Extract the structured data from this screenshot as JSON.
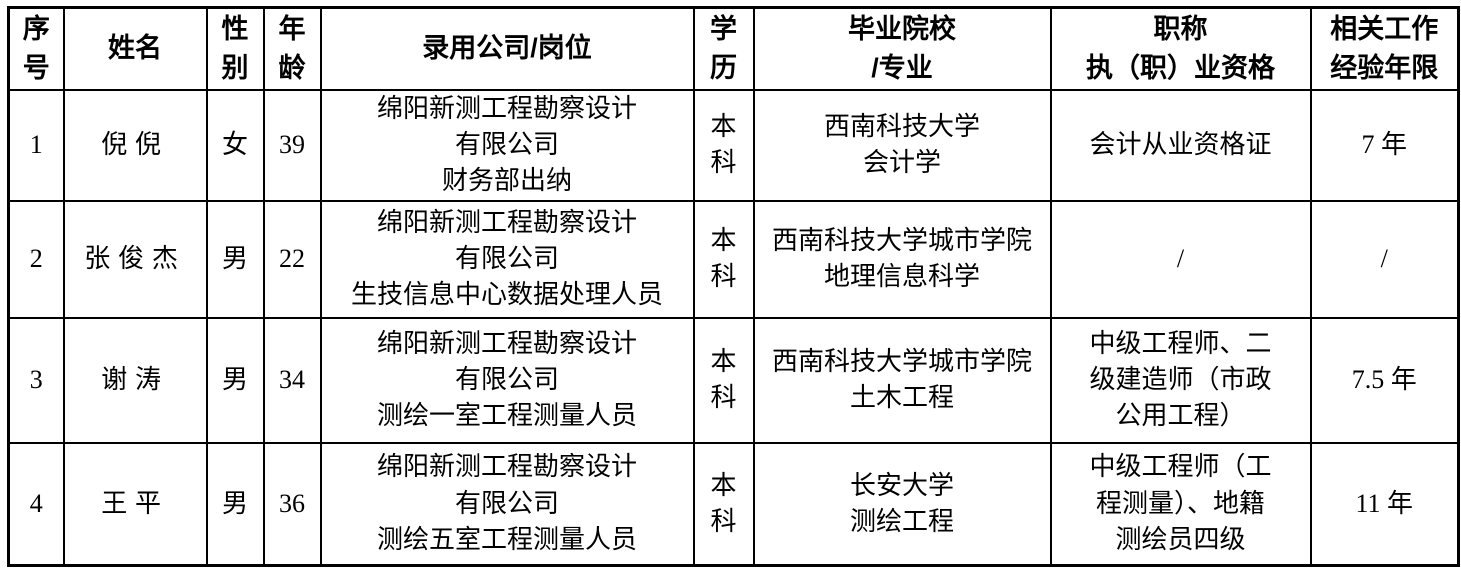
{
  "table": {
    "headers": [
      "序\n号",
      "姓名",
      "性\n别",
      "年\n龄",
      "录用公司/岗位",
      "学\n历",
      "毕业院校\n/专业",
      "职称\n执（职）业资格",
      "相关工作\n经验年限"
    ],
    "rows": [
      {
        "no": "1",
        "name": "倪倪",
        "gender": "女",
        "age": "39",
        "company": "绵阳新测工程勘察设计\n有限公司\n财务部出纳",
        "education": "本\n科",
        "school": "西南科技大学\n会计学",
        "qualification": "会计从业资格证",
        "experience": "7 年"
      },
      {
        "no": "2",
        "name": "张俊杰",
        "gender": "男",
        "age": "22",
        "company": "绵阳新测工程勘察设计\n有限公司\n生技信息中心数据处理人员",
        "education": "本\n科",
        "school": "西南科技大学城市学院\n地理信息科学",
        "qualification": "/",
        "experience": "/"
      },
      {
        "no": "3",
        "name": "谢涛",
        "gender": "男",
        "age": "34",
        "company": "绵阳新测工程勘察设计\n有限公司\n测绘一室工程测量人员",
        "education": "本\n科",
        "school": "西南科技大学城市学院\n土木工程",
        "qualification": "中级工程师、二\n级建造师（市政\n公用工程）",
        "experience": "7.5 年"
      },
      {
        "no": "4",
        "name": "王平",
        "gender": "男",
        "age": "36",
        "company": "绵阳新测工程勘察设计\n有限公司\n测绘五室工程测量人员",
        "education": "本\n科",
        "school": "长安大学\n测绘工程",
        "qualification": "中级工程师（工\n程测量）、地籍\n测绘员四级",
        "experience": "11 年"
      }
    ]
  }
}
